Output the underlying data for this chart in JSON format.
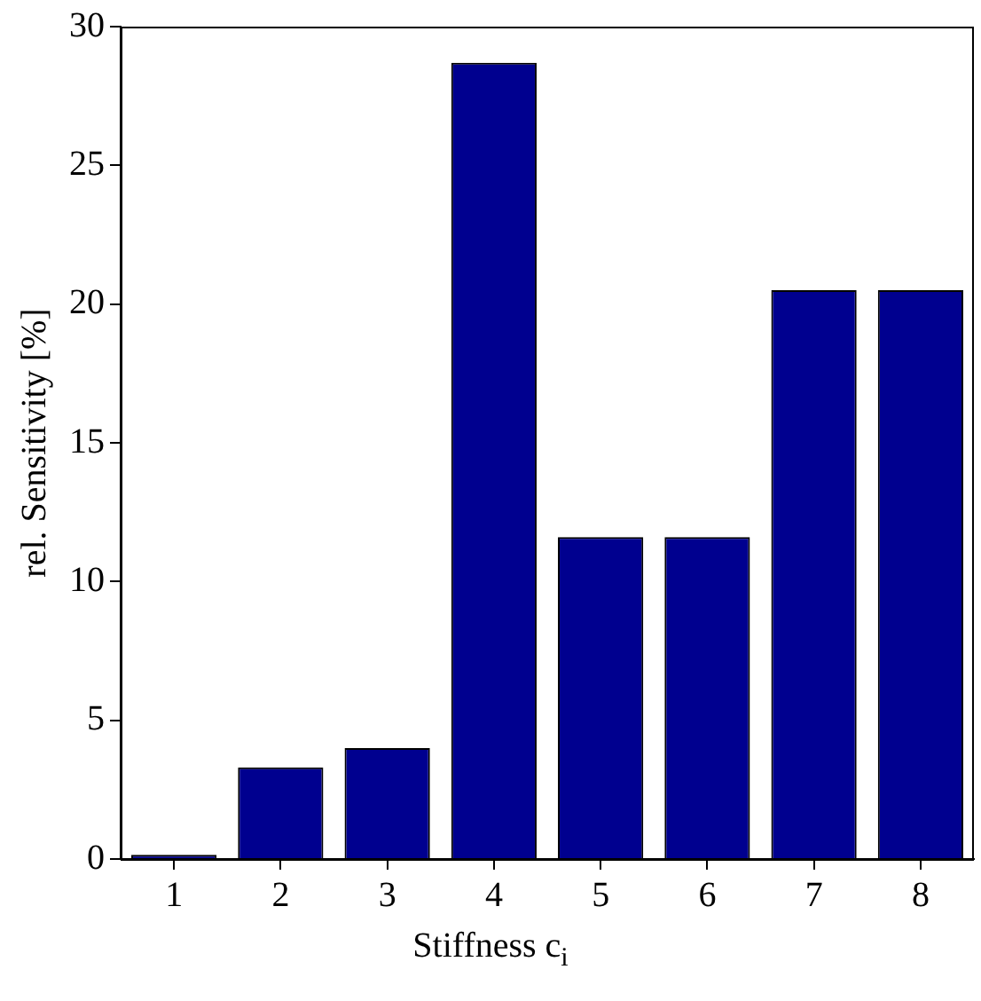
{
  "chart_data": {
    "type": "bar",
    "xlabel": "Stiffness c$_{i}$",
    "ylabel": "rel. Sensitivity [%]",
    "categories": [
      "1",
      "2",
      "3",
      "4",
      "5",
      "6",
      "7",
      "8"
    ],
    "values": [
      0.15,
      3.3,
      4.0,
      28.7,
      11.6,
      11.6,
      20.5,
      20.5
    ],
    "color": "#00008f",
    "ylim": [
      0,
      30
    ],
    "yticks": [
      0,
      5,
      10,
      15,
      20,
      25,
      30
    ],
    "grid": false,
    "legend": false
  }
}
